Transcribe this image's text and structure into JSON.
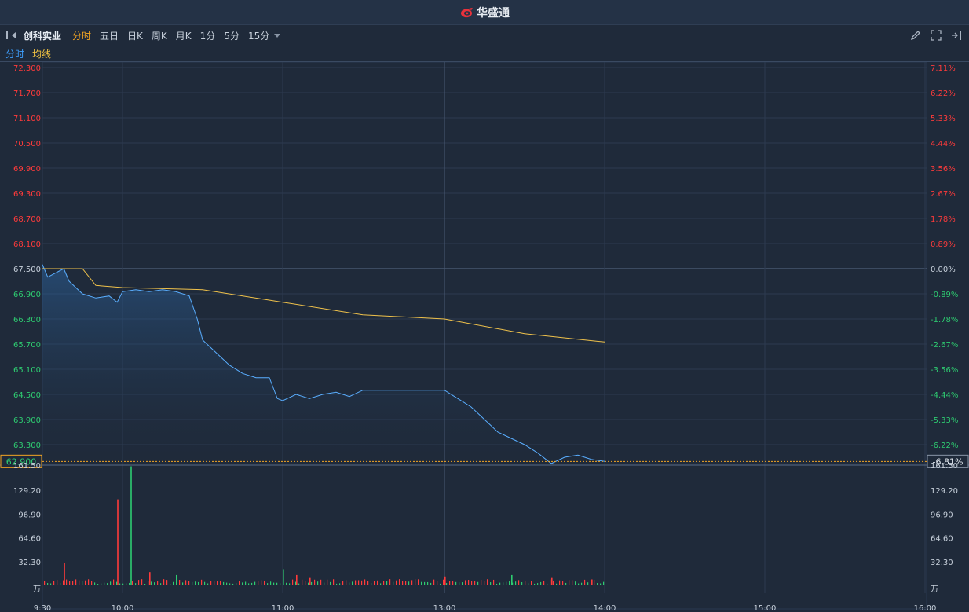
{
  "header": {
    "brand": "华盛通"
  },
  "toolbar": {
    "stock_name": "创科实业",
    "periods": [
      "分时",
      "五日",
      "日K",
      "周K",
      "月K",
      "1分",
      "5分",
      "15分"
    ],
    "active_period": "分时"
  },
  "legend": {
    "minute": "分时",
    "average": "均线"
  },
  "colors": {
    "up": "#ff3b3b",
    "down": "#2ecc71",
    "price_line": "#5aaeff",
    "avg_line": "#f0c24b",
    "grid": "#2c3a50"
  },
  "icons": {
    "left": "collapse-left-icon",
    "pencil": "pencil-icon",
    "expand": "expand-icon",
    "exit": "exit-icon"
  },
  "chart_data": {
    "type": "line",
    "prev_close": 67.5,
    "current_price": "62.900",
    "current_change": "-6.81%",
    "price_ticks": [
      "72.300",
      "71.700",
      "71.100",
      "70.500",
      "69.900",
      "69.300",
      "68.700",
      "68.100",
      "67.500",
      "66.900",
      "66.300",
      "65.700",
      "65.100",
      "64.500",
      "63.900",
      "63.300"
    ],
    "pct_ticks": [
      "7.11%",
      "6.22%",
      "5.33%",
      "4.44%",
      "3.56%",
      "2.67%",
      "1.78%",
      "0.89%",
      "0.00%",
      "-0.89%",
      "-1.78%",
      "-2.67%",
      "-3.56%",
      "-4.44%",
      "-5.33%",
      "-6.22%"
    ],
    "ylim": [
      62.8,
      72.3
    ],
    "time_ticks": [
      "9:30",
      "10:00",
      "11:00",
      "13:00",
      "14:00",
      "15:00",
      "16:00"
    ],
    "series": [
      {
        "name": "分时",
        "x": [
          "9:30",
          "9:32",
          "9:35",
          "9:38",
          "9:40",
          "9:45",
          "9:50",
          "9:55",
          "9:58",
          "10:00",
          "10:05",
          "10:10",
          "10:15",
          "10:20",
          "10:25",
          "10:28",
          "10:30",
          "10:35",
          "10:40",
          "10:45",
          "10:50",
          "10:55",
          "10:58",
          "11:00",
          "11:05",
          "11:10",
          "11:15",
          "11:20",
          "11:25",
          "11:30",
          "13:00",
          "13:05",
          "13:10",
          "13:15",
          "13:20",
          "13:25",
          "13:30",
          "13:35",
          "13:40",
          "13:45",
          "13:50",
          "13:55",
          "14:00"
        ],
        "values": [
          67.6,
          67.3,
          67.4,
          67.5,
          67.2,
          66.9,
          66.8,
          66.85,
          66.7,
          66.95,
          67.0,
          66.95,
          67.0,
          66.95,
          66.85,
          66.3,
          65.8,
          65.5,
          65.2,
          65.0,
          64.9,
          64.9,
          64.4,
          64.35,
          64.5,
          64.4,
          64.5,
          64.55,
          64.45,
          64.6,
          64.6,
          64.4,
          64.2,
          63.9,
          63.6,
          63.45,
          63.3,
          63.1,
          62.85,
          63.0,
          63.05,
          62.95,
          62.9
        ]
      },
      {
        "name": "均线",
        "x": [
          "9:30",
          "9:45",
          "9:50",
          "10:00",
          "10:30",
          "11:00",
          "11:30",
          "13:00",
          "13:30",
          "14:00"
        ],
        "values": [
          67.5,
          67.5,
          67.1,
          67.05,
          67.0,
          66.7,
          66.4,
          66.3,
          65.95,
          65.75
        ]
      }
    ],
    "volume": {
      "ticks": [
        "161.50",
        "129.20",
        "96.90",
        "64.60",
        "32.30",
        "万"
      ],
      "ylim": [
        0,
        161.5
      ],
      "bars": [
        {
          "t": "9:38",
          "v": 30,
          "dir": "up"
        },
        {
          "t": "9:58",
          "v": 117,
          "dir": "up"
        },
        {
          "t": "10:03",
          "v": 162,
          "dir": "down"
        },
        {
          "t": "10:10",
          "v": 18,
          "dir": "up"
        },
        {
          "t": "10:20",
          "v": 14,
          "dir": "down"
        },
        {
          "t": "11:00",
          "v": 22,
          "dir": "down"
        },
        {
          "t": "11:05",
          "v": 14,
          "dir": "up"
        },
        {
          "t": "11:10",
          "v": 10,
          "dir": "up"
        },
        {
          "t": "13:00",
          "v": 12,
          "dir": "up"
        },
        {
          "t": "13:25",
          "v": 14,
          "dir": "down"
        },
        {
          "t": "13:40",
          "v": 10,
          "dir": "up"
        },
        {
          "t": "13:55",
          "v": 8,
          "dir": "up"
        }
      ]
    }
  }
}
